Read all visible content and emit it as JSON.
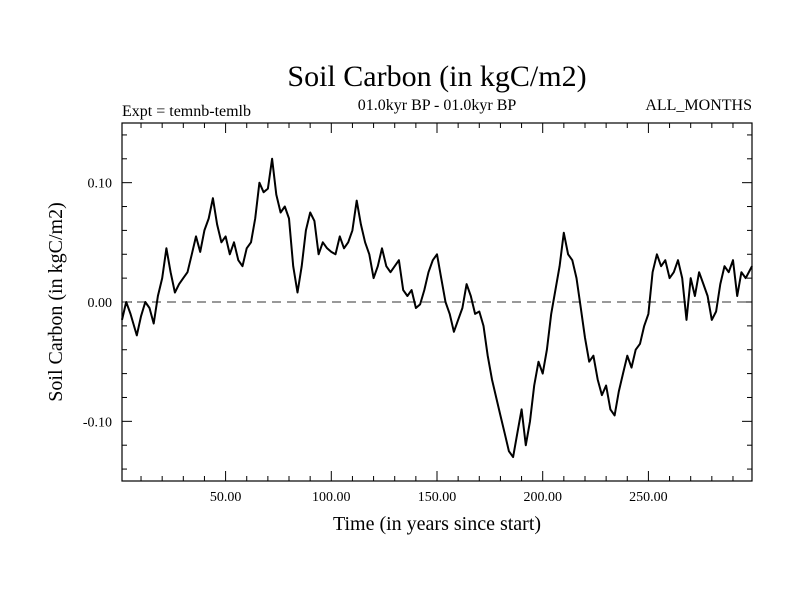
{
  "header": {
    "title": "Soil Carbon (in kgC/m2)",
    "subtitle": "01.0kyr BP - 01.0kyr BP",
    "expt": "Expt = temnb-temlb",
    "months": "ALL_MONTHS"
  },
  "colors": {
    "line": "#000000",
    "zero_line": "#333333",
    "background": "#ffffff"
  },
  "chart_data": {
    "type": "line",
    "title": "Soil Carbon (in kgC/m2)",
    "xlabel": "Time (in years since start)",
    "ylabel": "Soil Carbon (in kgC/m2)",
    "xlim": [
      1,
      299
    ],
    "ylim": [
      -0.15,
      0.15
    ],
    "x_ticks": [
      50,
      100,
      150,
      200,
      250
    ],
    "x_tick_labels": [
      "50.00",
      "100.00",
      "150.00",
      "200.00",
      "250.00"
    ],
    "y_ticks": [
      -0.1,
      0.0,
      0.1
    ],
    "y_tick_labels": [
      "-0.10",
      "0.00",
      "0.10"
    ],
    "reference_line": {
      "y": 0.0,
      "style": "dashed"
    },
    "series": [
      {
        "name": "Soil Carbon",
        "x": [
          1,
          3,
          5,
          8,
          10,
          12,
          14,
          16,
          18,
          20,
          22,
          24,
          26,
          28,
          30,
          32,
          34,
          36,
          38,
          40,
          42,
          44,
          46,
          48,
          50,
          52,
          54,
          56,
          58,
          60,
          62,
          64,
          66,
          68,
          70,
          72,
          74,
          76,
          78,
          80,
          82,
          84,
          86,
          88,
          90,
          92,
          94,
          96,
          98,
          100,
          102,
          104,
          106,
          108,
          110,
          112,
          114,
          116,
          118,
          120,
          122,
          124,
          126,
          128,
          130,
          132,
          134,
          136,
          138,
          140,
          142,
          144,
          146,
          148,
          150,
          152,
          154,
          156,
          158,
          160,
          162,
          164,
          166,
          168,
          170,
          172,
          174,
          176,
          178,
          180,
          182,
          184,
          186,
          188,
          190,
          192,
          194,
          196,
          198,
          200,
          202,
          204,
          206,
          208,
          210,
          212,
          214,
          216,
          218,
          220,
          222,
          224,
          226,
          228,
          230,
          232,
          234,
          236,
          238,
          240,
          242,
          244,
          246,
          248,
          250,
          252,
          254,
          256,
          258,
          260,
          262,
          264,
          266,
          268,
          270,
          272,
          274,
          276,
          278,
          280,
          282,
          284,
          286,
          288,
          290,
          292,
          294,
          296,
          299
        ],
        "y": [
          -0.015,
          0.0,
          -0.01,
          -0.028,
          -0.012,
          0.0,
          -0.005,
          -0.018,
          0.005,
          0.02,
          0.045,
          0.025,
          0.008,
          0.015,
          0.02,
          0.025,
          0.04,
          0.055,
          0.042,
          0.06,
          0.07,
          0.087,
          0.065,
          0.05,
          0.055,
          0.04,
          0.05,
          0.035,
          0.03,
          0.045,
          0.05,
          0.07,
          0.1,
          0.092,
          0.095,
          0.12,
          0.09,
          0.075,
          0.08,
          0.07,
          0.03,
          0.008,
          0.03,
          0.06,
          0.075,
          0.068,
          0.04,
          0.05,
          0.045,
          0.042,
          0.04,
          0.055,
          0.045,
          0.05,
          0.06,
          0.085,
          0.065,
          0.05,
          0.04,
          0.02,
          0.03,
          0.045,
          0.03,
          0.025,
          0.03,
          0.035,
          0.01,
          0.005,
          0.01,
          -0.005,
          -0.002,
          0.01,
          0.025,
          0.035,
          0.04,
          0.02,
          0.0,
          -0.01,
          -0.025,
          -0.015,
          -0.005,
          0.015,
          0.005,
          -0.01,
          -0.008,
          -0.02,
          -0.045,
          -0.065,
          -0.08,
          -0.095,
          -0.11,
          -0.125,
          -0.13,
          -0.11,
          -0.09,
          -0.12,
          -0.1,
          -0.07,
          -0.05,
          -0.06,
          -0.04,
          -0.01,
          0.01,
          0.03,
          0.058,
          0.04,
          0.035,
          0.02,
          -0.005,
          -0.03,
          -0.05,
          -0.045,
          -0.065,
          -0.078,
          -0.07,
          -0.09,
          -0.095,
          -0.075,
          -0.06,
          -0.045,
          -0.055,
          -0.04,
          -0.035,
          -0.02,
          -0.01,
          0.025,
          0.04,
          0.03,
          0.035,
          0.02,
          0.025,
          0.035,
          0.02,
          -0.015,
          0.02,
          0.005,
          0.025,
          0.015,
          0.005,
          -0.015,
          -0.008,
          0.015,
          0.03,
          0.025,
          0.035,
          0.005,
          0.025,
          0.02,
          0.03
        ]
      }
    ]
  }
}
